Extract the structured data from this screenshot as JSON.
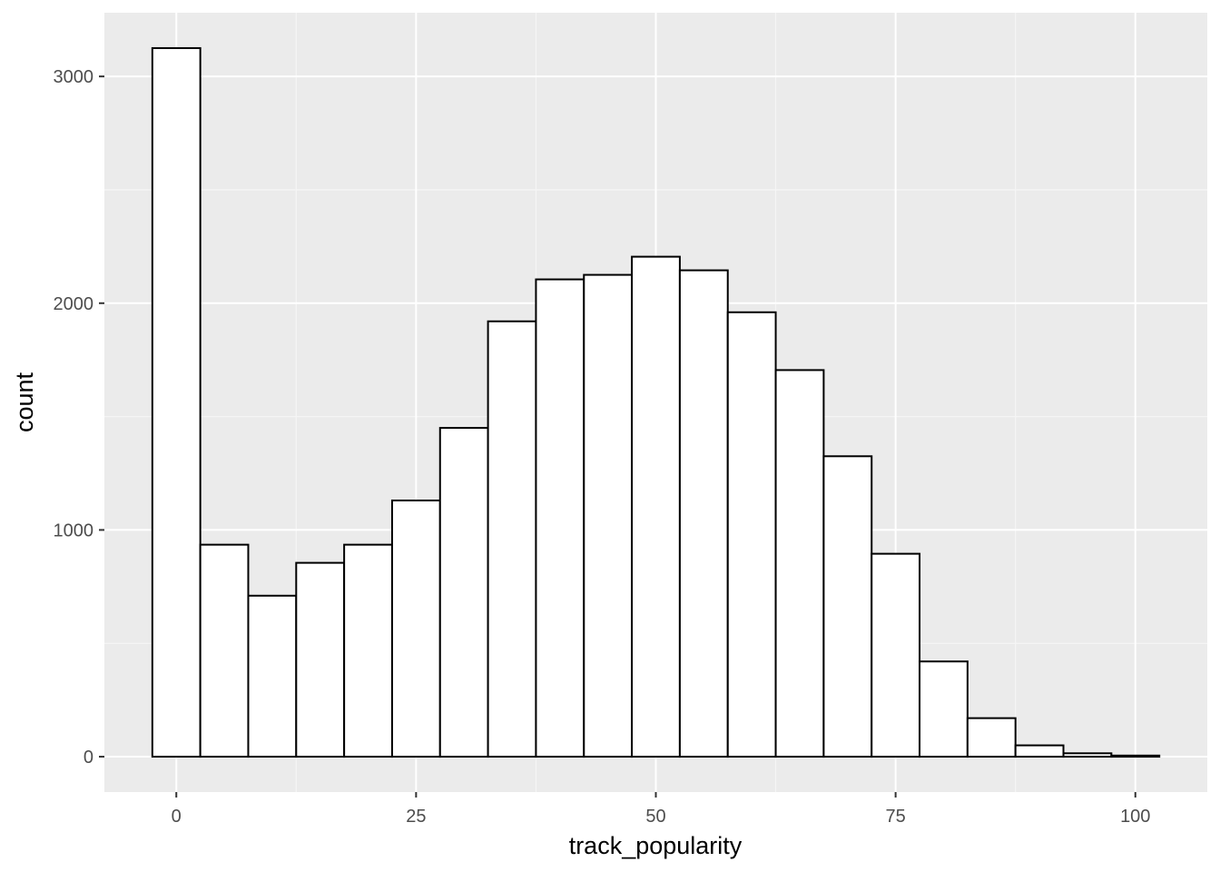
{
  "chart_data": {
    "type": "bar",
    "subtype": "histogram",
    "title": "",
    "xlabel": "track_popularity",
    "ylabel": "count",
    "bin_width": 5,
    "bins": [
      {
        "center": 0,
        "count": 3125
      },
      {
        "center": 5,
        "count": 935
      },
      {
        "center": 10,
        "count": 710
      },
      {
        "center": 15,
        "count": 855
      },
      {
        "center": 20,
        "count": 935
      },
      {
        "center": 25,
        "count": 1130
      },
      {
        "center": 30,
        "count": 1450
      },
      {
        "center": 35,
        "count": 1920
      },
      {
        "center": 40,
        "count": 2105
      },
      {
        "center": 45,
        "count": 2125
      },
      {
        "center": 50,
        "count": 2205
      },
      {
        "center": 55,
        "count": 2145
      },
      {
        "center": 60,
        "count": 1960
      },
      {
        "center": 65,
        "count": 1705
      },
      {
        "center": 70,
        "count": 1325
      },
      {
        "center": 75,
        "count": 895
      },
      {
        "center": 80,
        "count": 420
      },
      {
        "center": 85,
        "count": 170
      },
      {
        "center": 90,
        "count": 50
      },
      {
        "center": 95,
        "count": 15
      },
      {
        "center": 100,
        "count": 5
      }
    ],
    "xlim": [
      -7.5,
      107.5
    ],
    "ylim": [
      -156,
      3281
    ],
    "x_ticks": [
      0,
      25,
      50,
      75,
      100
    ],
    "x_tick_labels": [
      "0",
      "25",
      "50",
      "75",
      "100"
    ],
    "y_ticks": [
      0,
      1000,
      2000,
      3000
    ],
    "y_tick_labels": [
      "0",
      "1000",
      "2000",
      "3000"
    ],
    "grid": true,
    "colors": {
      "panel_background": "#ebebeb",
      "grid_major": "#ffffff",
      "grid_minor": "#f5f5f5",
      "bar_fill": "#ffffff",
      "bar_outline": "#000000"
    }
  }
}
